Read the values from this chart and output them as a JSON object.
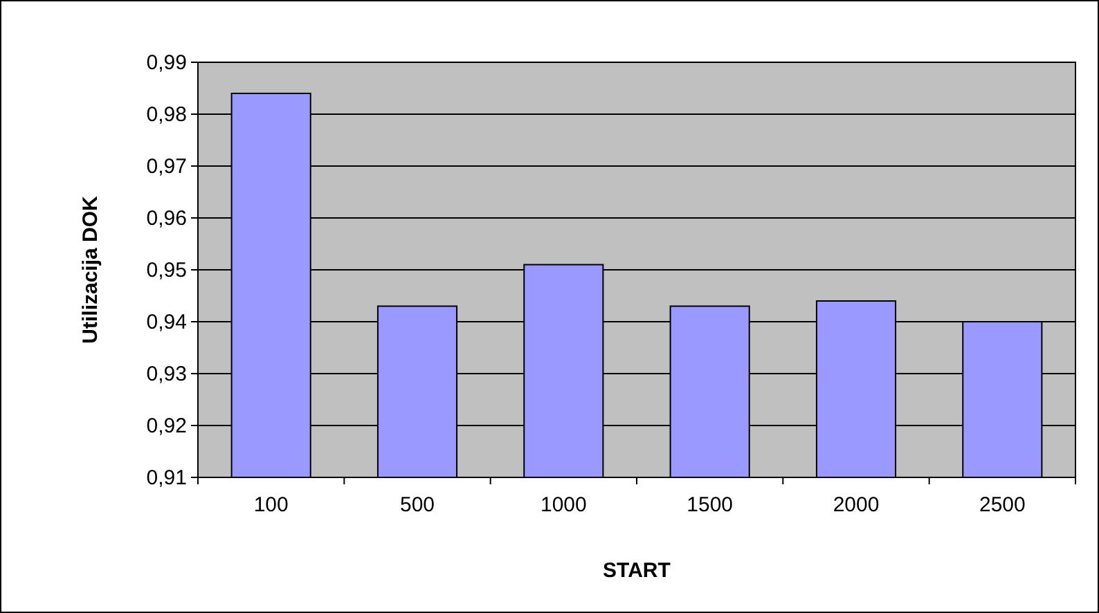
{
  "chart_data": {
    "type": "bar",
    "xlabel": "START",
    "ylabel": "Utilizacija DOK",
    "categories": [
      "100",
      "500",
      "1000",
      "1500",
      "2000",
      "2500"
    ],
    "values": [
      0.984,
      0.943,
      0.951,
      0.943,
      0.944,
      0.94
    ],
    "color": "#9999ff",
    "ylim": [
      0.91,
      0.99
    ],
    "yticks": [
      {
        "value": 0.91,
        "label": "0,91"
      },
      {
        "value": 0.92,
        "label": "0,92"
      },
      {
        "value": 0.93,
        "label": "0,93"
      },
      {
        "value": 0.94,
        "label": "0,94"
      },
      {
        "value": 0.95,
        "label": "0,95"
      },
      {
        "value": 0.96,
        "label": "0,96"
      },
      {
        "value": 0.97,
        "label": "0,97"
      },
      {
        "value": 0.98,
        "label": "0,98"
      },
      {
        "value": 0.99,
        "label": "0,99"
      }
    ],
    "grid": "y"
  }
}
